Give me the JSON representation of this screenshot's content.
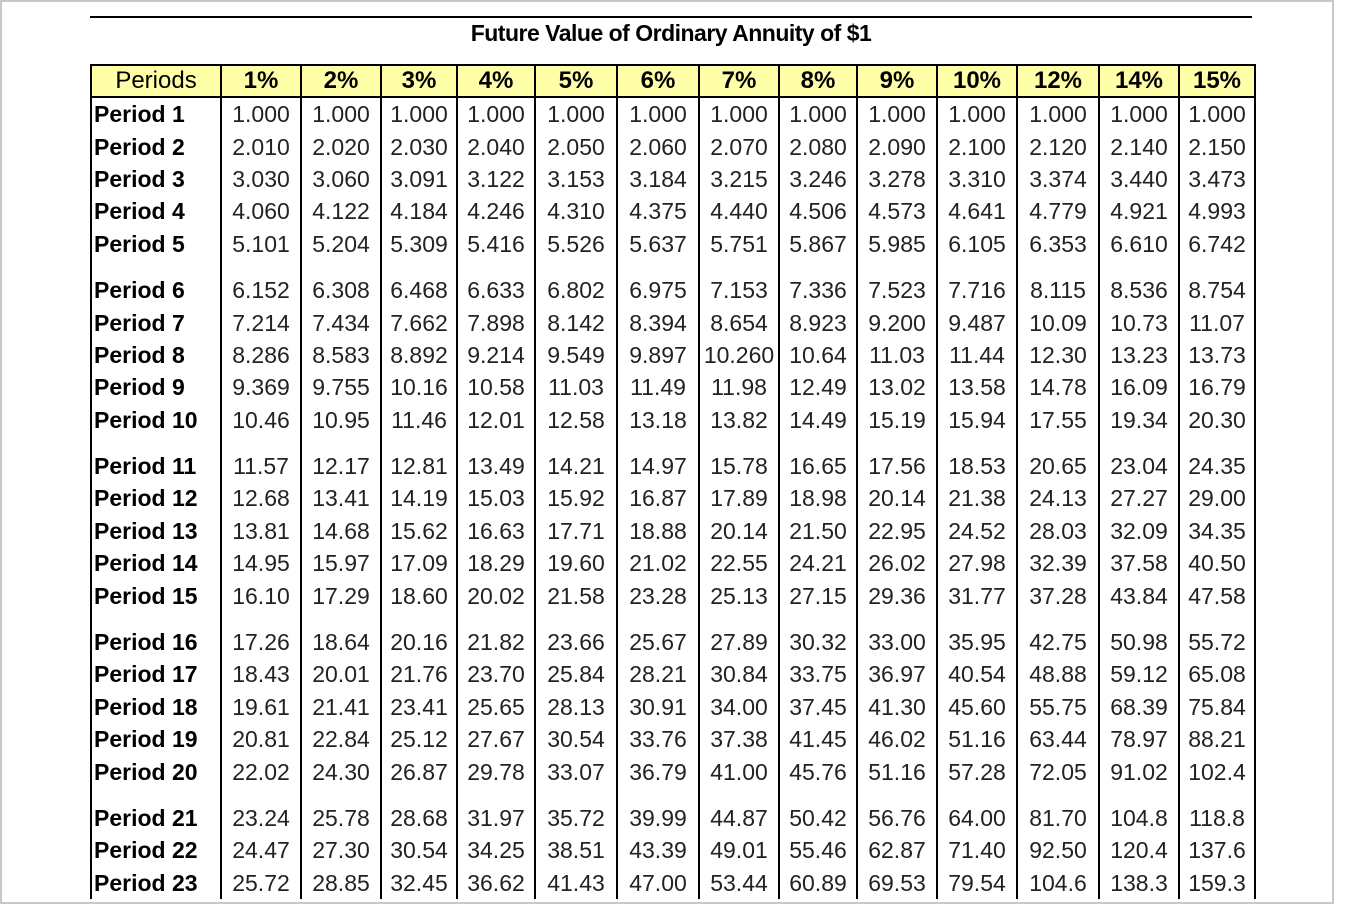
{
  "title": "Future Value of Ordinary Annuity of $1",
  "header": {
    "periods_label": "Periods",
    "rates": [
      "1%",
      "2%",
      "3%",
      "4%",
      "5%",
      "6%",
      "7%",
      "8%",
      "9%",
      "10%",
      "12%",
      "14%",
      "15%"
    ]
  },
  "rows": [
    {
      "label": "Period 1",
      "values": [
        "1.000",
        "1.000",
        "1.000",
        "1.000",
        "1.000",
        "1.000",
        "1.000",
        "1.000",
        "1.000",
        "1.000",
        "1.000",
        "1.000",
        "1.000"
      ]
    },
    {
      "label": "Period 2",
      "values": [
        "2.010",
        "2.020",
        "2.030",
        "2.040",
        "2.050",
        "2.060",
        "2.070",
        "2.080",
        "2.090",
        "2.100",
        "2.120",
        "2.140",
        "2.150"
      ]
    },
    {
      "label": "Period 3",
      "values": [
        "3.030",
        "3.060",
        "3.091",
        "3.122",
        "3.153",
        "3.184",
        "3.215",
        "3.246",
        "3.278",
        "3.310",
        "3.374",
        "3.440",
        "3.473"
      ]
    },
    {
      "label": "Period 4",
      "values": [
        "4.060",
        "4.122",
        "4.184",
        "4.246",
        "4.310",
        "4.375",
        "4.440",
        "4.506",
        "4.573",
        "4.641",
        "4.779",
        "4.921",
        "4.993"
      ]
    },
    {
      "label": "Period 5",
      "values": [
        "5.101",
        "5.204",
        "5.309",
        "5.416",
        "5.526",
        "5.637",
        "5.751",
        "5.867",
        "5.985",
        "6.105",
        "6.353",
        "6.610",
        "6.742"
      ]
    },
    {
      "label": "Period 6",
      "values": [
        "6.152",
        "6.308",
        "6.468",
        "6.633",
        "6.802",
        "6.975",
        "7.153",
        "7.336",
        "7.523",
        "7.716",
        "8.115",
        "8.536",
        "8.754"
      ]
    },
    {
      "label": "Period 7",
      "values": [
        "7.214",
        "7.434",
        "7.662",
        "7.898",
        "8.142",
        "8.394",
        "8.654",
        "8.923",
        "9.200",
        "9.487",
        "10.09",
        "10.73",
        "11.07"
      ]
    },
    {
      "label": "Period 8",
      "values": [
        "8.286",
        "8.583",
        "8.892",
        "9.214",
        "9.549",
        "9.897",
        "10.260",
        "10.64",
        "11.03",
        "11.44",
        "12.30",
        "13.23",
        "13.73"
      ]
    },
    {
      "label": "Period 9",
      "values": [
        "9.369",
        "9.755",
        "10.16",
        "10.58",
        "11.03",
        "11.49",
        "11.98",
        "12.49",
        "13.02",
        "13.58",
        "14.78",
        "16.09",
        "16.79"
      ]
    },
    {
      "label": "Period 10",
      "values": [
        "10.46",
        "10.95",
        "11.46",
        "12.01",
        "12.58",
        "13.18",
        "13.82",
        "14.49",
        "15.19",
        "15.94",
        "17.55",
        "19.34",
        "20.30"
      ]
    },
    {
      "label": "Period 11",
      "values": [
        "11.57",
        "12.17",
        "12.81",
        "13.49",
        "14.21",
        "14.97",
        "15.78",
        "16.65",
        "17.56",
        "18.53",
        "20.65",
        "23.04",
        "24.35"
      ]
    },
    {
      "label": "Period 12",
      "values": [
        "12.68",
        "13.41",
        "14.19",
        "15.03",
        "15.92",
        "16.87",
        "17.89",
        "18.98",
        "20.14",
        "21.38",
        "24.13",
        "27.27",
        "29.00"
      ]
    },
    {
      "label": "Period 13",
      "values": [
        "13.81",
        "14.68",
        "15.62",
        "16.63",
        "17.71",
        "18.88",
        "20.14",
        "21.50",
        "22.95",
        "24.52",
        "28.03",
        "32.09",
        "34.35"
      ]
    },
    {
      "label": "Period 14",
      "values": [
        "14.95",
        "15.97",
        "17.09",
        "18.29",
        "19.60",
        "21.02",
        "22.55",
        "24.21",
        "26.02",
        "27.98",
        "32.39",
        "37.58",
        "40.50"
      ]
    },
    {
      "label": "Period 15",
      "values": [
        "16.10",
        "17.29",
        "18.60",
        "20.02",
        "21.58",
        "23.28",
        "25.13",
        "27.15",
        "29.36",
        "31.77",
        "37.28",
        "43.84",
        "47.58"
      ]
    },
    {
      "label": "Period 16",
      "values": [
        "17.26",
        "18.64",
        "20.16",
        "21.82",
        "23.66",
        "25.67",
        "27.89",
        "30.32",
        "33.00",
        "35.95",
        "42.75",
        "50.98",
        "55.72"
      ]
    },
    {
      "label": "Period 17",
      "values": [
        "18.43",
        "20.01",
        "21.76",
        "23.70",
        "25.84",
        "28.21",
        "30.84",
        "33.75",
        "36.97",
        "40.54",
        "48.88",
        "59.12",
        "65.08"
      ]
    },
    {
      "label": "Period 18",
      "values": [
        "19.61",
        "21.41",
        "23.41",
        "25.65",
        "28.13",
        "30.91",
        "34.00",
        "37.45",
        "41.30",
        "45.60",
        "55.75",
        "68.39",
        "75.84"
      ]
    },
    {
      "label": "Period 19",
      "values": [
        "20.81",
        "22.84",
        "25.12",
        "27.67",
        "30.54",
        "33.76",
        "37.38",
        "41.45",
        "46.02",
        "51.16",
        "63.44",
        "78.97",
        "88.21"
      ]
    },
    {
      "label": "Period 20",
      "values": [
        "22.02",
        "24.30",
        "26.87",
        "29.78",
        "33.07",
        "36.79",
        "41.00",
        "45.76",
        "51.16",
        "57.28",
        "72.05",
        "91.02",
        "102.4"
      ]
    },
    {
      "label": "Period 21",
      "values": [
        "23.24",
        "25.78",
        "28.68",
        "31.97",
        "35.72",
        "39.99",
        "44.87",
        "50.42",
        "56.76",
        "64.00",
        "81.70",
        "104.8",
        "118.8"
      ]
    },
    {
      "label": "Period 22",
      "values": [
        "24.47",
        "27.30",
        "30.54",
        "34.25",
        "38.51",
        "43.39",
        "49.01",
        "55.46",
        "62.87",
        "71.40",
        "92.50",
        "120.4",
        "137.6"
      ]
    },
    {
      "label": "Period 23",
      "values": [
        "25.72",
        "28.85",
        "32.45",
        "36.62",
        "41.43",
        "47.00",
        "53.44",
        "60.89",
        "69.53",
        "79.54",
        "104.6",
        "138.3",
        "159.3"
      ]
    }
  ]
}
